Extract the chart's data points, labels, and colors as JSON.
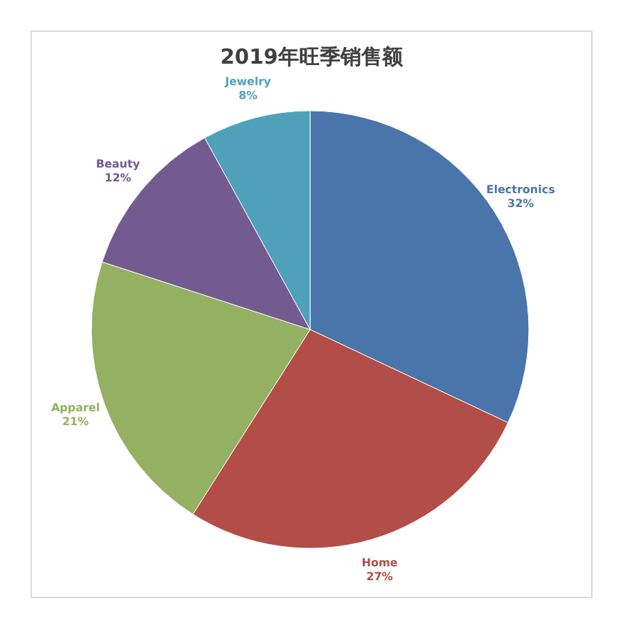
{
  "chart_data": {
    "type": "pie",
    "title": "2019年旺季销售额",
    "categories": [
      "Electronics",
      "Home",
      "Apparel",
      "Beauty",
      "Jewelry"
    ],
    "values": [
      32,
      27,
      21,
      12,
      8
    ],
    "value_labels": [
      "32%",
      "27%",
      "21%",
      "12%",
      "8%"
    ],
    "colors": [
      "#4a75ab",
      "#b24d48",
      "#94b062",
      "#735a8f",
      "#4fa1bb"
    ]
  }
}
